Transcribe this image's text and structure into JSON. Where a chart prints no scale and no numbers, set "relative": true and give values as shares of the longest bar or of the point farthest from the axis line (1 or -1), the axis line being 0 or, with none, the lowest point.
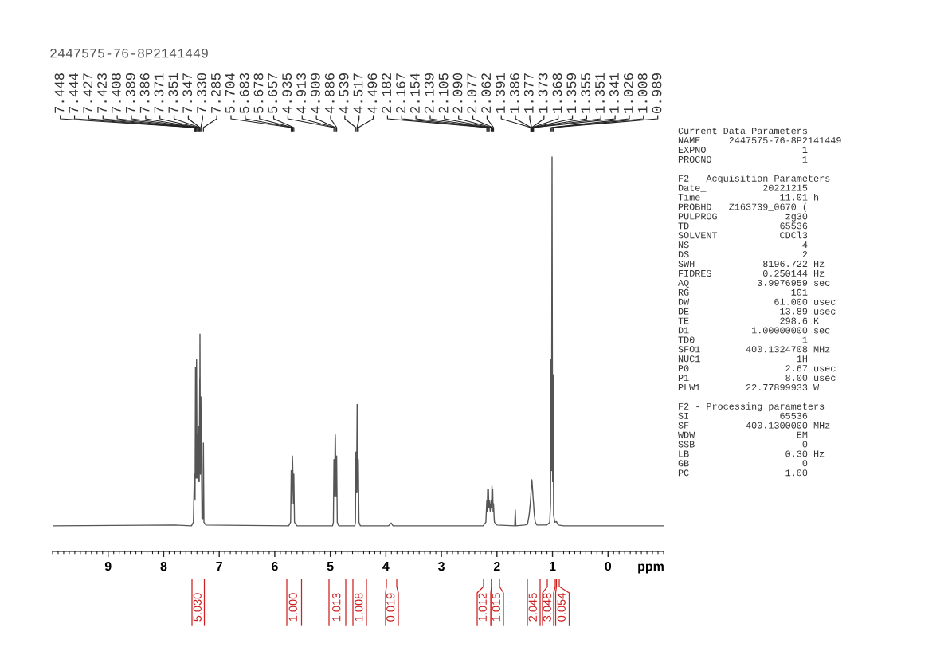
{
  "chart_data": {
    "type": "line",
    "relative": true,
    "title": "2447575-76-8P2141449",
    "xlabel": "ppm",
    "xlim": [
      10,
      -1
    ],
    "xticks": [
      9,
      8,
      7,
      6,
      5,
      4,
      3,
      2,
      1,
      0
    ],
    "series": [
      {
        "color": "#555555",
        "x": [
          10.0,
          7.8,
          7.5,
          7.465,
          7.448,
          7.446,
          7.444,
          7.435,
          7.427,
          7.425,
          7.423,
          7.415,
          7.408,
          7.398,
          7.389,
          7.3875,
          7.386,
          7.38,
          7.371,
          7.36,
          7.351,
          7.349,
          7.347,
          7.339,
          7.33,
          7.31,
          7.295,
          7.285,
          7.275,
          7.24,
          5.75,
          5.715,
          5.704,
          5.693,
          5.683,
          5.678,
          5.665,
          5.657,
          5.645,
          5.6,
          4.96,
          4.945,
          4.935,
          4.922,
          4.913,
          4.909,
          4.897,
          4.886,
          4.875,
          4.85,
          4.56,
          4.548,
          4.539,
          4.528,
          4.517,
          4.506,
          4.496,
          4.485,
          4.46,
          3.95,
          3.905,
          3.87,
          2.29,
          2.25,
          2.2,
          2.182,
          2.174,
          2.167,
          2.16,
          2.154,
          2.146,
          2.139,
          2.122,
          2.105,
          2.098,
          2.09,
          2.083,
          2.077,
          2.07,
          2.062,
          2.05,
          2.045,
          2.0,
          1.68,
          1.67,
          1.66,
          1.5,
          1.45,
          1.42,
          1.4,
          1.391,
          1.386,
          1.377,
          1.373,
          1.368,
          1.359,
          1.355,
          1.351,
          1.341,
          1.33,
          1.31,
          1.28,
          1.13,
          1.1,
          1.05,
          1.035,
          1.026,
          1.017,
          1.008,
          0.998,
          0.989,
          0.98,
          0.96,
          0.93,
          0.9,
          0.89,
          0.8,
          -1.0
        ],
        "values": [
          0.065,
          0.067,
          0.065,
          0.074,
          0.196,
          0.158,
          0.186,
          0.13,
          0.467,
          0.401,
          0.439,
          0.186,
          0.486,
          0.186,
          0.289,
          0.252,
          0.298,
          0.177,
          0.317,
          0.177,
          0.439,
          0.392,
          0.551,
          0.196,
          0.392,
          0.083,
          0.083,
          0.275,
          0.074,
          0.067,
          0.065,
          0.074,
          0.205,
          0.121,
          0.242,
          0.224,
          0.121,
          0.196,
          0.074,
          0.065,
          0.065,
          0.074,
          0.233,
          0.139,
          0.298,
          0.289,
          0.139,
          0.242,
          0.074,
          0.065,
          0.065,
          0.074,
          0.252,
          0.149,
          0.373,
          0.149,
          0.233,
          0.074,
          0.065,
          0.065,
          0.072,
          0.065,
          0.065,
          0.065,
          0.074,
          0.13,
          0.102,
          0.158,
          0.121,
          0.158,
          0.111,
          0.13,
          0.102,
          0.13,
          0.111,
          0.166,
          0.121,
          0.158,
          0.102,
          0.121,
          0.084,
          0.074,
          0.067,
          0.065,
          0.105,
          0.065,
          0.067,
          0.069,
          0.093,
          0.121,
          0.139,
          0.149,
          0.172,
          0.182,
          0.177,
          0.158,
          0.149,
          0.139,
          0.121,
          0.097,
          0.074,
          0.067,
          0.067,
          0.067,
          0.074,
          0.121,
          0.486,
          0.205,
          1.0,
          0.177,
          0.448,
          0.093,
          0.074,
          0.076,
          0.068,
          0.067,
          0.065,
          0.065
        ]
      }
    ],
    "annotations": [
      {
        "text": "7.448",
        "x": 7.448
      },
      {
        "text": "7.444",
        "x": 7.444
      },
      {
        "text": "7.427",
        "x": 7.427
      },
      {
        "text": "7.423",
        "x": 7.423
      },
      {
        "text": "7.408",
        "x": 7.408
      },
      {
        "text": "7.389",
        "x": 7.389
      },
      {
        "text": "7.386",
        "x": 7.386
      },
      {
        "text": "7.371",
        "x": 7.371
      },
      {
        "text": "7.351",
        "x": 7.351
      },
      {
        "text": "7.347",
        "x": 7.347
      },
      {
        "text": "7.330",
        "x": 7.33
      },
      {
        "text": "7.285",
        "x": 7.285
      },
      {
        "text": "5.704",
        "x": 5.704
      },
      {
        "text": "5.683",
        "x": 5.683
      },
      {
        "text": "5.678",
        "x": 5.678
      },
      {
        "text": "5.657",
        "x": 5.657
      },
      {
        "text": "4.935",
        "x": 4.935
      },
      {
        "text": "4.913",
        "x": 4.913
      },
      {
        "text": "4.909",
        "x": 4.909
      },
      {
        "text": "4.886",
        "x": 4.886
      },
      {
        "text": "4.539",
        "x": 4.539
      },
      {
        "text": "4.517",
        "x": 4.517
      },
      {
        "text": "4.496",
        "x": 4.496
      },
      {
        "text": "2.182",
        "x": 2.182
      },
      {
        "text": "2.167",
        "x": 2.167
      },
      {
        "text": "2.154",
        "x": 2.154
      },
      {
        "text": "2.139",
        "x": 2.139
      },
      {
        "text": "2.105",
        "x": 2.105
      },
      {
        "text": "2.090",
        "x": 2.09
      },
      {
        "text": "2.077",
        "x": 2.077
      },
      {
        "text": "2.062",
        "x": 2.062
      },
      {
        "text": "1.391",
        "x": 1.391
      },
      {
        "text": "1.386",
        "x": 1.386
      },
      {
        "text": "1.377",
        "x": 1.377
      },
      {
        "text": "1.373",
        "x": 1.373
      },
      {
        "text": "1.368",
        "x": 1.368
      },
      {
        "text": "1.359",
        "x": 1.359
      },
      {
        "text": "1.355",
        "x": 1.355
      },
      {
        "text": "1.351",
        "x": 1.351
      },
      {
        "text": "1.341",
        "x": 1.341
      },
      {
        "text": "1.026",
        "x": 1.026
      },
      {
        "text": "1.008",
        "x": 1.008
      },
      {
        "text": "0.989",
        "x": 0.989
      },
      "Current Data Parameters\nNAME     2447575-76-8P2141449\nEXPNO                 1\nPROCNO                1",
      "F2 - Acquisition Parameters\nDate_          20221215\nTime              11.01 h\nPROBHD   Z163739_0670 (\nPULPROG            zg30\nTD                65536\nSOLVENT           CDCl3\nNS                    4\nDS                    2\nSWH            8196.722 Hz\nFIDRES         0.250144 Hz\nAQ            3.9976959 sec\nRG                  101\nDW               61.000 usec\nDE                13.89 usec\nTE                298.6 K\nD1           1.00000000 sec\nTD0                   1\nSFO1        400.1324708 MHz\nNUC1                 1H\nP0                 2.67 usec\nP1                 8.00 usec\nPLW1        22.77899933 W",
      "F2 - Processing parameters\nSI                65536\nSF          400.1300000 MHz\nWDW                  EM\nSSB                   0\nLB                 0.30 Hz\nGB                    0\nPC                 1.00",
      "5.030",
      "1.000",
      "1.013",
      "1.008",
      "0.019",
      "1.012",
      "1.015",
      "2.045",
      "3.048",
      "0.054"
    ]
  }
}
